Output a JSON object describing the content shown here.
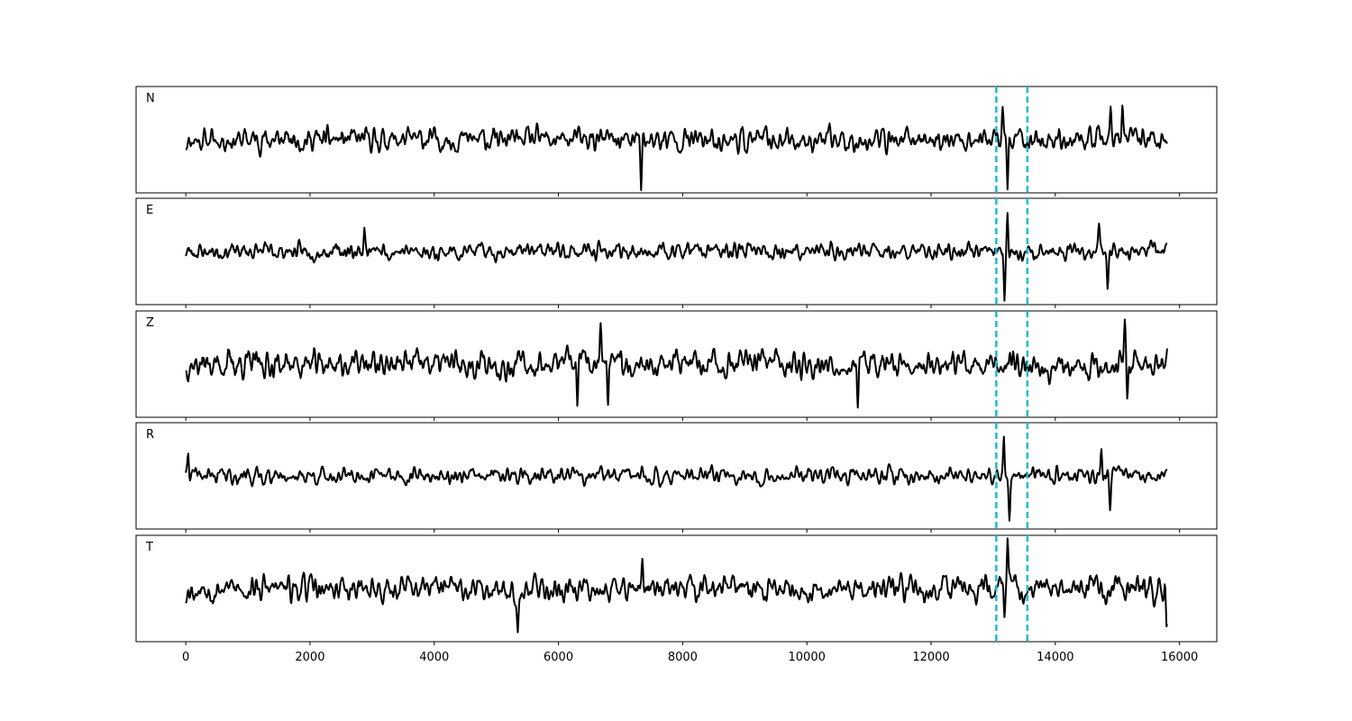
{
  "chart_data": {
    "type": "line",
    "title": "",
    "xlabel": "",
    "ylabel": "",
    "xlim": [
      -800,
      16600
    ],
    "x_ticks": [
      0,
      2000,
      4000,
      6000,
      8000,
      10000,
      12000,
      14000,
      16000
    ],
    "x_tick_labels": [
      "0",
      "2000",
      "4000",
      "6000",
      "8000",
      "10000",
      "12000",
      "14000",
      "16000"
    ],
    "series_x_range": [
      0,
      15800
    ],
    "vertical_markers": [
      13050,
      13550
    ],
    "marker_color": "#17becf",
    "trace_color": "#000000",
    "grid": false,
    "panels": [
      {
        "name": "N",
        "ylim": [
          -1,
          1
        ],
        "seed": 11,
        "amp": 0.32,
        "events": [
          [
            7330,
            -0.85
          ],
          [
            13230,
            -0.95
          ],
          [
            13150,
            0.5
          ],
          [
            14890,
            0.65
          ],
          [
            15080,
            0.7
          ]
        ]
      },
      {
        "name": "E",
        "ylim": [
          -1,
          1
        ],
        "seed": 23,
        "amp": 0.22,
        "events": [
          [
            2880,
            0.45
          ],
          [
            13230,
            0.82
          ],
          [
            13180,
            -0.9
          ],
          [
            14840,
            -0.6
          ],
          [
            14700,
            0.55
          ]
        ]
      },
      {
        "name": "Z",
        "ylim": [
          -1,
          1
        ],
        "seed": 37,
        "amp": 0.38,
        "events": [
          [
            6800,
            -0.9
          ],
          [
            6680,
            0.8
          ],
          [
            10820,
            -0.95
          ],
          [
            15120,
            0.78
          ],
          [
            15160,
            -0.8
          ],
          [
            6300,
            -0.7
          ]
        ]
      },
      {
        "name": "R",
        "ylim": [
          -1,
          1
        ],
        "seed": 41,
        "amp": 0.22,
        "events": [
          [
            13170,
            0.9
          ],
          [
            13260,
            -0.85
          ],
          [
            14740,
            0.6
          ],
          [
            14880,
            -0.6
          ],
          [
            40,
            0.45
          ]
        ]
      },
      {
        "name": "T",
        "ylim": [
          -1,
          1
        ],
        "seed": 53,
        "amp": 0.34,
        "events": [
          [
            13230,
            1.0
          ],
          [
            13180,
            -0.7
          ],
          [
            7350,
            0.65
          ],
          [
            5350,
            -0.7
          ],
          [
            15790,
            -0.65
          ]
        ]
      }
    ]
  }
}
